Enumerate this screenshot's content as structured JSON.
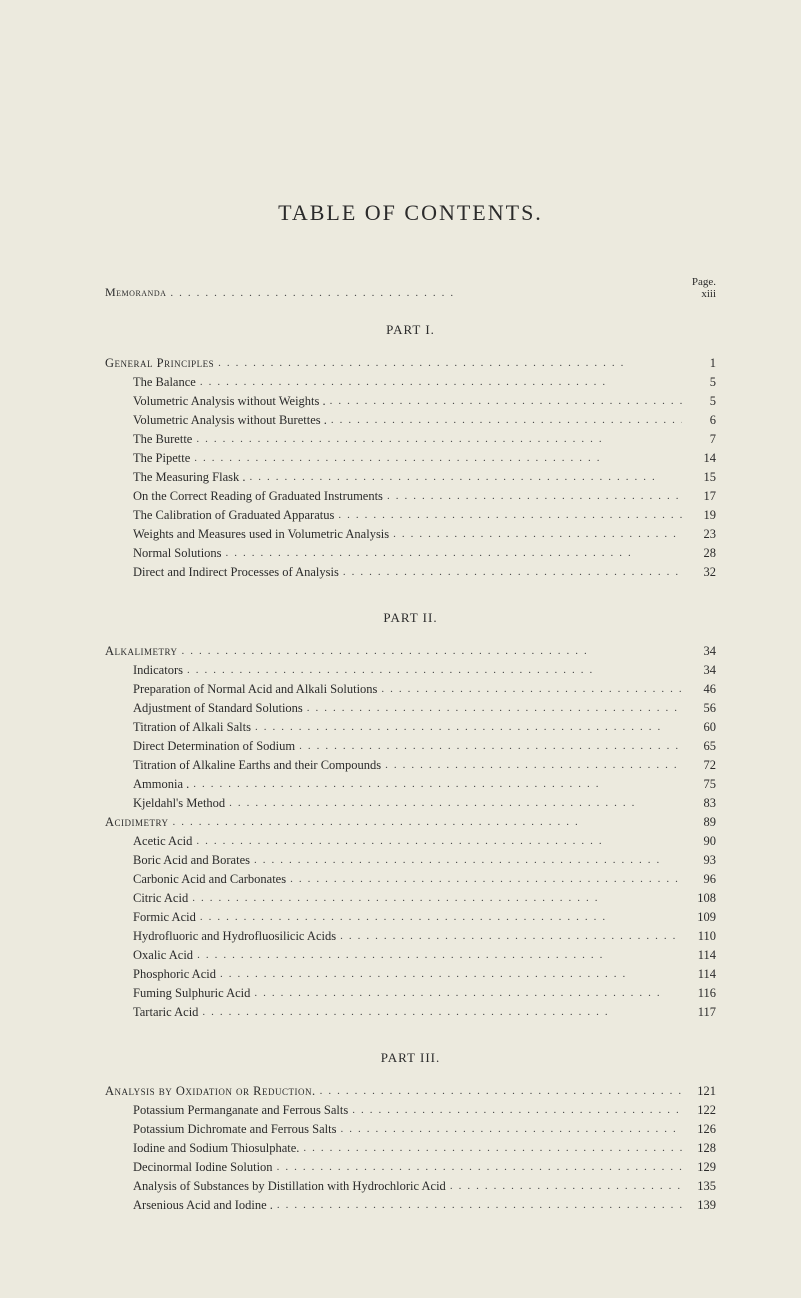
{
  "title": "TABLE OF CONTENTS.",
  "header": {
    "left": "Memoranda",
    "page_word": "Page.",
    "page_val": "xiii"
  },
  "parts": [
    {
      "title": "PART I.",
      "entries": [
        {
          "label": "General Principles",
          "page": "1",
          "head": true
        },
        {
          "label": "The Balance",
          "page": "5"
        },
        {
          "label": "Volumetric Analysis without Weights .",
          "page": "5"
        },
        {
          "label": "Volumetric Analysis without Burettes .",
          "page": "6"
        },
        {
          "label": "The Burette",
          "page": "7"
        },
        {
          "label": "The Pipette",
          "page": "14"
        },
        {
          "label": "The Measuring Flask .",
          "page": "15"
        },
        {
          "label": "On the Correct Reading of Graduated Instruments",
          "page": "17"
        },
        {
          "label": "The Calibration of Graduated Apparatus",
          "page": "19"
        },
        {
          "label": "Weights and Measures used in Volumetric Analysis",
          "page": "23"
        },
        {
          "label": "Normal Solutions",
          "page": "28"
        },
        {
          "label": "Direct and Indirect Processes of Analysis",
          "page": "32"
        }
      ]
    },
    {
      "title": "PART II.",
      "entries": [
        {
          "label": "Alkalimetry",
          "page": "34",
          "head": true
        },
        {
          "label": "Indicators",
          "page": "34"
        },
        {
          "label": "Preparation of Normal Acid and Alkali Solutions",
          "page": "46"
        },
        {
          "label": "Adjustment of Standard Solutions",
          "page": "56"
        },
        {
          "label": "Titration of Alkali Salts",
          "page": "60"
        },
        {
          "label": "Direct Determination of Sodium",
          "page": "65"
        },
        {
          "label": "Titration of Alkaline Earths and their Compounds",
          "page": "72"
        },
        {
          "label": "Ammonia .",
          "page": "75"
        },
        {
          "label": "Kjeldahl's Method",
          "page": "83"
        },
        {
          "label": "Acidimetry",
          "page": "89",
          "head": true
        },
        {
          "label": "Acetic Acid",
          "page": "90"
        },
        {
          "label": "Boric Acid and Borates",
          "page": "93"
        },
        {
          "label": "Carbonic Acid and Carbonates",
          "page": "96"
        },
        {
          "label": "Citric Acid",
          "page": "108"
        },
        {
          "label": "Formic Acid",
          "page": "109"
        },
        {
          "label": "Hydrofluoric and Hydrofluosilicic Acids",
          "page": "110"
        },
        {
          "label": "Oxalic Acid",
          "page": "114"
        },
        {
          "label": "Phosphoric Acid",
          "page": "114"
        },
        {
          "label": "Fuming Sulphuric Acid",
          "page": "116"
        },
        {
          "label": "Tartaric Acid",
          "page": "117"
        }
      ]
    },
    {
      "title": "PART III.",
      "entries": [
        {
          "label": "Analysis by Oxidation or Reduction.",
          "page": "121",
          "head": true
        },
        {
          "label": "Potassium Permanganate and Ferrous Salts",
          "page": "122"
        },
        {
          "label": "Potassium Dichromate and Ferrous Salts",
          "page": "126"
        },
        {
          "label": "Iodine and Sodium Thiosulphate.",
          "page": "128"
        },
        {
          "label": "Decinormal Iodine Solution",
          "page": "129"
        },
        {
          "label": "Analysis of Substances by Distillation with Hydrochloric Acid",
          "page": "135"
        },
        {
          "label": "Arsenious Acid and Iodine .",
          "page": "139"
        }
      ]
    }
  ],
  "style": {
    "background_color": "#eceade",
    "text_color": "#2b2b2b",
    "title_fontsize": 22,
    "body_fontsize": 12.5,
    "part_fontsize": 13
  }
}
